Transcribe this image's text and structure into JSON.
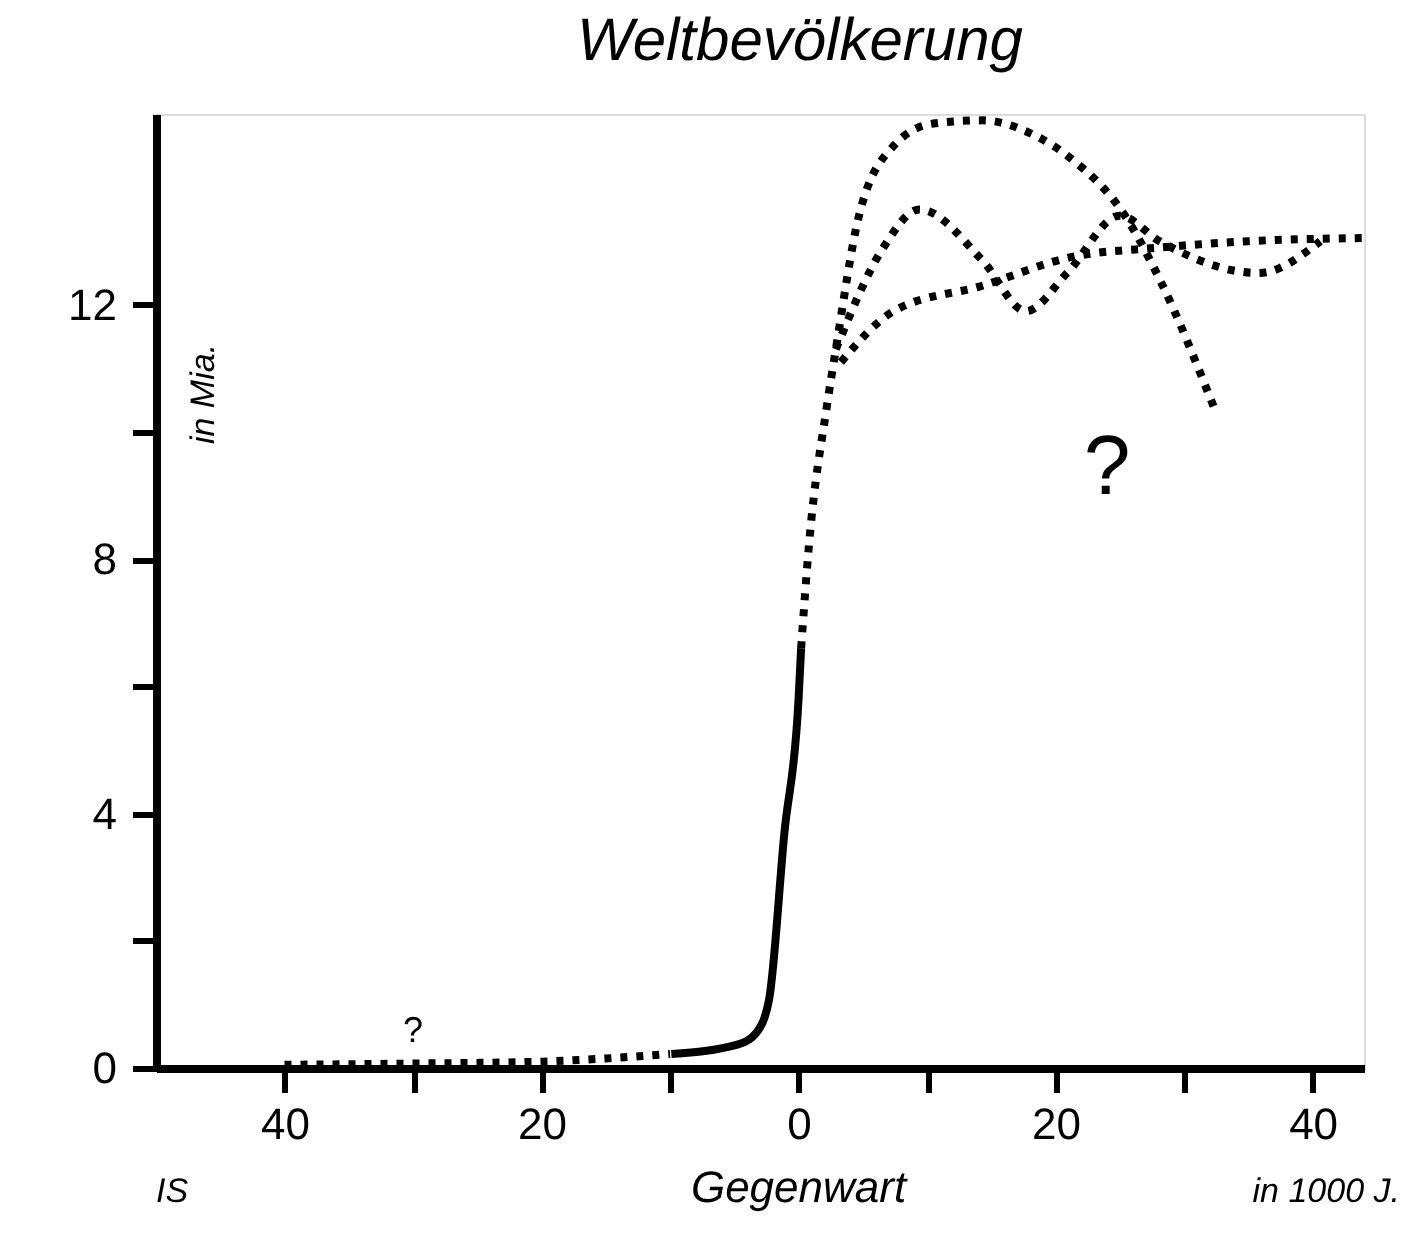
{
  "chart_data": {
    "type": "line",
    "title": "Weltbevölkerung",
    "xlabel": "Gegenwart",
    "ylabel": "in Mia.",
    "xlim": [
      -50,
      44
    ],
    "ylim": [
      0,
      15
    ],
    "xticks": [
      {
        "value": -40,
        "label": "40"
      },
      {
        "value": -30,
        "label": null
      },
      {
        "value": -20,
        "label": "20"
      },
      {
        "value": -10,
        "label": null
      },
      0,
      {
        "value": 10,
        "label": null
      },
      20,
      {
        "value": 30,
        "label": null
      },
      40
    ],
    "yticks": [
      0,
      {
        "value": 2,
        "label": null
      },
      4,
      {
        "value": 6,
        "label": null
      },
      8,
      {
        "value": 10,
        "label": null
      },
      12
    ],
    "grid": false,
    "marker": "none",
    "series": [
      {
        "color": "#000000",
        "line_style": "dotted",
        "x": [
          -40,
          -30,
          -20,
          -15,
          -10
        ],
        "values": [
          0.05,
          0.07,
          0.1,
          0.15,
          0.22
        ]
      },
      {
        "color": "#000000",
        "line_style": "solid",
        "x": [
          -9.9,
          -4.7,
          -3.3,
          -2.3,
          -1.1,
          0,
          0.2
        ],
        "values": [
          0.22,
          0.37,
          0.55,
          1.07,
          3.7,
          5.8,
          6.6
        ]
      },
      {
        "color": "#000000",
        "line_style": "dotted",
        "x": [
          0.2,
          0.8,
          2.2,
          2.9,
          4.7,
          7.4,
          10.5,
          14.3,
          18,
          21.2,
          25.4,
          28.1,
          32.3
        ],
        "values": [
          6.6,
          8.2,
          10.4,
          11.3,
          13.4,
          14.5,
          14.85,
          14.9,
          14.7,
          14.3,
          13.4,
          12.4,
          10.4
        ]
      },
      {
        "color": "#000000",
        "line_style": "dotted",
        "x": [
          2.9,
          6.6,
          9.4,
          14.3,
          17.7,
          20.9,
          25.0,
          28.1,
          35.8,
          40.6
        ],
        "values": [
          11.3,
          12.9,
          13.5,
          12.7,
          11.9,
          12.5,
          13.4,
          13.0,
          12.5,
          13.0
        ]
      },
      {
        "color": "#000000",
        "line_style": "dotted",
        "x": [
          3.3,
          7.4,
          14.3,
          21.2,
          28.1,
          35,
          44
        ],
        "values": [
          11.1,
          11.9,
          12.3,
          12.75,
          12.9,
          13.0,
          13.05
        ]
      }
    ],
    "annotations": [
      "?",
      "?",
      "IS",
      "in 1000 J."
    ]
  }
}
